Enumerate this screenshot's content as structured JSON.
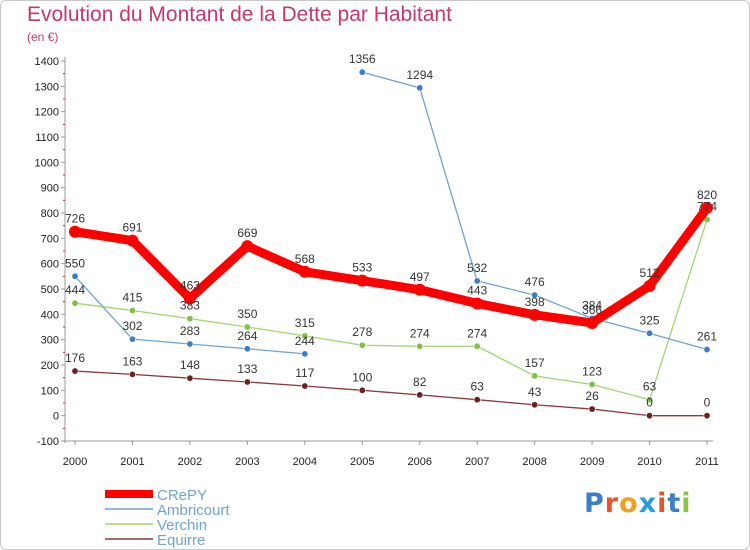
{
  "header": {
    "title": "Evolution du Montant de la Dette par Habitant",
    "unit": "(en €)"
  },
  "logo": {
    "text": "Proxiti",
    "letter_colors": [
      "#3b7fc4",
      "#e8542a",
      "#f0a020",
      "#2a9fd6",
      "#e8542a",
      "#3b7fc4",
      "#8cc63f"
    ]
  },
  "chart_data": {
    "type": "line",
    "x": [
      "2000",
      "2001",
      "2002",
      "2003",
      "2004",
      "2005",
      "2006",
      "2007",
      "2008",
      "2009",
      "2010",
      "2011"
    ],
    "ylim": [
      -100,
      1400
    ],
    "yticks": [
      -100,
      0,
      100,
      200,
      300,
      400,
      500,
      600,
      700,
      800,
      900,
      1000,
      1100,
      1200,
      1300,
      1400
    ],
    "grid": false,
    "legend_position": "bottom-left",
    "series": [
      {
        "name": "CRePY",
        "color": "#ff0000",
        "width": 9,
        "points": [
          {
            "x": "2000",
            "y": 726
          },
          {
            "x": "2001",
            "y": 691
          },
          {
            "x": "2002",
            "y": 463
          },
          {
            "x": "2003",
            "y": 669
          },
          {
            "x": "2004",
            "y": 568
          },
          {
            "x": "2005",
            "y": 533
          },
          {
            "x": "2006",
            "y": 497
          },
          {
            "x": "2007",
            "y": 443
          },
          {
            "x": "2008",
            "y": 398
          },
          {
            "x": "2009",
            "y": 366
          },
          {
            "x": "2010",
            "y": 512
          },
          {
            "x": "2011",
            "y": 820
          }
        ]
      },
      {
        "name": "Ambricourt",
        "color": "#6fa3d6",
        "marker": "#3b7fc4",
        "width": 1.3,
        "segments": [
          [
            {
              "x": "2000",
              "y": 550
            },
            {
              "x": "2001",
              "y": 302
            },
            {
              "x": "2002",
              "y": 283
            },
            {
              "x": "2003",
              "y": 264
            },
            {
              "x": "2004",
              "y": 244
            }
          ],
          [
            {
              "x": "2005",
              "y": 1356
            },
            {
              "x": "2006",
              "y": 1294
            },
            {
              "x": "2007",
              "y": 532
            },
            {
              "x": "2008",
              "y": 476
            },
            {
              "x": "2009",
              "y": 384
            },
            {
              "x": "2010",
              "y": 325
            },
            {
              "x": "2011",
              "y": 261
            }
          ]
        ]
      },
      {
        "name": "Verchin",
        "color": "#9ed66f",
        "marker": "#7cc243",
        "width": 1.3,
        "points": [
          {
            "x": "2000",
            "y": 444
          },
          {
            "x": "2001",
            "y": 415
          },
          {
            "x": "2002",
            "y": 383
          },
          {
            "x": "2003",
            "y": 350
          },
          {
            "x": "2004",
            "y": 315
          },
          {
            "x": "2005",
            "y": 278
          },
          {
            "x": "2006",
            "y": 274
          },
          {
            "x": "2007",
            "y": 274
          },
          {
            "x": "2008",
            "y": 157
          },
          {
            "x": "2009",
            "y": 123
          },
          {
            "x": "2010",
            "y": 63
          },
          {
            "x": "2011",
            "y": 774
          }
        ]
      },
      {
        "name": "Equirre",
        "color": "#8b3a3a",
        "marker": "#6b1f1f",
        "width": 1.3,
        "points": [
          {
            "x": "2000",
            "y": 176
          },
          {
            "x": "2001",
            "y": 163
          },
          {
            "x": "2002",
            "y": 148
          },
          {
            "x": "2003",
            "y": 133
          },
          {
            "x": "2004",
            "y": 117
          },
          {
            "x": "2005",
            "y": 100
          },
          {
            "x": "2006",
            "y": 82
          },
          {
            "x": "2007",
            "y": 63
          },
          {
            "x": "2008",
            "y": 43
          },
          {
            "x": "2009",
            "y": 26
          },
          {
            "x": "2010",
            "y": 0
          },
          {
            "x": "2011",
            "y": 0
          }
        ]
      }
    ],
    "data_labels": [
      {
        "x": "2000",
        "y": 726,
        "text": "726",
        "pos": "above"
      },
      {
        "x": "2001",
        "y": 691,
        "text": "691",
        "pos": "above"
      },
      {
        "x": "2002",
        "y": 463,
        "text": "463",
        "pos": "above"
      },
      {
        "x": "2003",
        "y": 669,
        "text": "669",
        "pos": "above"
      },
      {
        "x": "2004",
        "y": 568,
        "text": "568",
        "pos": "above"
      },
      {
        "x": "2005",
        "y": 533,
        "text": "533",
        "pos": "above"
      },
      {
        "x": "2006",
        "y": 497,
        "text": "497",
        "pos": "above"
      },
      {
        "x": "2007",
        "y": 443,
        "text": "443",
        "pos": "above"
      },
      {
        "x": "2008",
        "y": 398,
        "text": "398",
        "pos": "above"
      },
      {
        "x": "2009",
        "y": 366,
        "text": "366",
        "pos": "above"
      },
      {
        "x": "2010",
        "y": 512,
        "text": "512",
        "pos": "above"
      },
      {
        "x": "2011",
        "y": 820,
        "text": "820",
        "pos": "above"
      },
      {
        "x": "2000",
        "y": 550,
        "text": "550",
        "pos": "above"
      },
      {
        "x": "2001",
        "y": 302,
        "text": "302",
        "pos": "above"
      },
      {
        "x": "2002",
        "y": 283,
        "text": "283",
        "pos": "above"
      },
      {
        "x": "2003",
        "y": 264,
        "text": "264",
        "pos": "above"
      },
      {
        "x": "2004",
        "y": 244,
        "text": "244",
        "pos": "above"
      },
      {
        "x": "2005",
        "y": 1356,
        "text": "1356",
        "pos": "above"
      },
      {
        "x": "2006",
        "y": 1294,
        "text": "1294",
        "pos": "above"
      },
      {
        "x": "2007",
        "y": 532,
        "text": "532",
        "pos": "above"
      },
      {
        "x": "2008",
        "y": 476,
        "text": "476",
        "pos": "above"
      },
      {
        "x": "2009",
        "y": 384,
        "text": "384",
        "pos": "above"
      },
      {
        "x": "2010",
        "y": 325,
        "text": "325",
        "pos": "above"
      },
      {
        "x": "2011",
        "y": 261,
        "text": "261",
        "pos": "above"
      },
      {
        "x": "2000",
        "y": 444,
        "text": "444",
        "pos": "above"
      },
      {
        "x": "2001",
        "y": 415,
        "text": "415",
        "pos": "above"
      },
      {
        "x": "2002",
        "y": 383,
        "text": "383",
        "pos": "above"
      },
      {
        "x": "2003",
        "y": 350,
        "text": "350",
        "pos": "above"
      },
      {
        "x": "2004",
        "y": 315,
        "text": "315",
        "pos": "above"
      },
      {
        "x": "2005",
        "y": 278,
        "text": "278",
        "pos": "above"
      },
      {
        "x": "2006",
        "y": 274,
        "text": "274",
        "pos": "above"
      },
      {
        "x": "2007",
        "y": 274,
        "text": "274",
        "pos": "above"
      },
      {
        "x": "2008",
        "y": 157,
        "text": "157",
        "pos": "above"
      },
      {
        "x": "2009",
        "y": 123,
        "text": "123",
        "pos": "above"
      },
      {
        "x": "2010",
        "y": 63,
        "text": "63",
        "pos": "above"
      },
      {
        "x": "2011",
        "y": 774,
        "text": "774",
        "pos": "above"
      },
      {
        "x": "2000",
        "y": 176,
        "text": "176",
        "pos": "above"
      },
      {
        "x": "2001",
        "y": 163,
        "text": "163",
        "pos": "above"
      },
      {
        "x": "2002",
        "y": 148,
        "text": "148",
        "pos": "above"
      },
      {
        "x": "2003",
        "y": 133,
        "text": "133",
        "pos": "above"
      },
      {
        "x": "2004",
        "y": 117,
        "text": "117",
        "pos": "above"
      },
      {
        "x": "2005",
        "y": 100,
        "text": "100",
        "pos": "above"
      },
      {
        "x": "2006",
        "y": 82,
        "text": "82",
        "pos": "above"
      },
      {
        "x": "2007",
        "y": 63,
        "text": "63",
        "pos": "above"
      },
      {
        "x": "2008",
        "y": 43,
        "text": "43",
        "pos": "above"
      },
      {
        "x": "2009",
        "y": 26,
        "text": "26",
        "pos": "above"
      },
      {
        "x": "2010",
        "y": 0,
        "text": "0",
        "pos": "above"
      },
      {
        "x": "2011",
        "y": 0,
        "text": "0",
        "pos": "above"
      }
    ]
  }
}
